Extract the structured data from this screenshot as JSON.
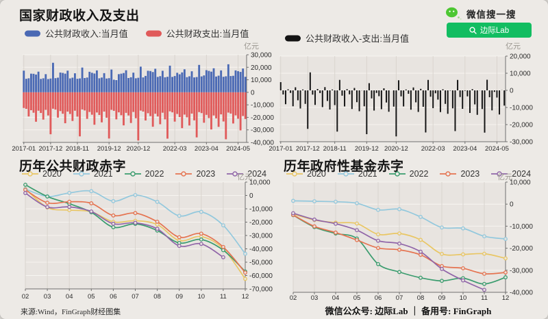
{
  "header": {
    "search_brand": "微信搜一搜",
    "search_button": "边际Lab",
    "brand_green": "#4dc732",
    "button_green": "#12bd61"
  },
  "footer": {
    "source": "来源:Wind，FinGraph财经图集",
    "accounts": "微信公众号: 边际Lab ｜ 备用号: FinGraph"
  },
  "colors": {
    "page_bg": "#edeae6",
    "plot_bg": "#e8e4e0",
    "grid_h": "#f7f5f1",
    "grid_v": "#d9d4ce",
    "axis": "#6f6f6f",
    "tick_text": "#2b2b2b",
    "revenue_blue": "#4a69b4",
    "expense_red": "#e05a5a",
    "net_black": "#141414"
  },
  "chart_data": [
    {
      "id": "rev-exp",
      "type": "bar",
      "title": "国家财政收入及支出",
      "unit": "亿元",
      "x_start": "2017-01",
      "x_end": "2024-08",
      "x_interval": "monthly",
      "x_tick_labels": [
        "2017-01",
        "2017-12",
        "2018-11",
        "2019-12",
        "2020-12",
        "2022-03",
        "2023-04",
        "2024-05"
      ],
      "x_tick_index": [
        0,
        11,
        22,
        35,
        47,
        62,
        75,
        88
      ],
      "ylim": [
        -40000,
        30000
      ],
      "y_step": 10000,
      "grid": true,
      "legend_position": "top",
      "series": [
        {
          "name": "公共财政收入:当月值",
          "color": "#4a69b4",
          "values": [
            17300,
            10800,
            11200,
            14900,
            14800,
            14200,
            16500,
            10700,
            11200,
            14500,
            10600,
            11000,
            23600,
            11300,
            11700,
            15800,
            15500,
            14900,
            17300,
            11100,
            11700,
            15200,
            10800,
            11100,
            19800,
            11400,
            11800,
            16400,
            15600,
            15000,
            17500,
            11200,
            11800,
            15300,
            11000,
            11300,
            18200,
            10100,
            9800,
            14500,
            14900,
            15400,
            17600,
            11400,
            12000,
            15700,
            11200,
            11600,
            20500,
            11900,
            13100,
            17200,
            17000,
            16200,
            18800,
            12300,
            12900,
            17200,
            12000,
            12400,
            21300,
            12300,
            13000,
            15600,
            14400,
            15900,
            18400,
            12100,
            12800,
            16800,
            11900,
            12200,
            21900,
            12700,
            13500,
            17700,
            17100,
            16500,
            19200,
            12600,
            13300,
            17500,
            12400,
            12800,
            22400,
            13000,
            13200,
            17500,
            16900,
            16300,
            19000,
            12400
          ]
        },
        {
          "name": "公共财政支出:当月值",
          "color": "#e05a5a",
          "values": [
            -12500,
            -13200,
            -19300,
            -14300,
            -16300,
            -23500,
            -14700,
            -16500,
            -21800,
            -14000,
            -18500,
            -33500,
            -13100,
            -13800,
            -20200,
            -15000,
            -17100,
            -24700,
            -15400,
            -17300,
            -22900,
            -14700,
            -19400,
            -35200,
            -13700,
            -14500,
            -21200,
            -15700,
            -17900,
            -25900,
            -16100,
            -18100,
            -24000,
            -15400,
            -20300,
            -36900,
            -14000,
            -14800,
            -21600,
            -16000,
            -18300,
            -26400,
            -16400,
            -18500,
            -24500,
            -15700,
            -20700,
            -38500,
            -14600,
            -15400,
            -22500,
            -16700,
            -19000,
            -27500,
            -17100,
            -19300,
            -25500,
            -16300,
            -21600,
            -37000,
            -15200,
            -16000,
            -23400,
            -17300,
            -19800,
            -28600,
            -17800,
            -20000,
            -26500,
            -17000,
            -22400,
            -36000,
            -15800,
            -16600,
            -24300,
            -18000,
            -20600,
            -29700,
            -18500,
            -20800,
            -27600,
            -17600,
            -23300,
            -37500,
            -16200,
            -17000,
            -24900,
            -18400,
            -21100,
            -30400,
            -18900,
            -21300
          ]
        }
      ]
    },
    {
      "id": "net",
      "type": "bar",
      "title": "",
      "unit": "亿元",
      "x_start": "2017-01",
      "x_end": "2024-08",
      "x_interval": "monthly",
      "x_tick_labels": [
        "2017-01",
        "2017-12",
        "2018-11",
        "2019-12",
        "2020-12",
        "2022-03",
        "2023-04",
        "2024-05"
      ],
      "x_tick_index": [
        0,
        11,
        22,
        35,
        47,
        62,
        75,
        88
      ],
      "ylim": [
        -30000,
        20000
      ],
      "y_step": 10000,
      "grid": true,
      "legend_position": "top",
      "series": [
        {
          "name": "公共财政收入-支出:当月值",
          "color": "#141414",
          "values": [
            4800,
            -2400,
            -8100,
            600,
            -1500,
            -9300,
            1800,
            -5800,
            -10600,
            500,
            -7900,
            -22500,
            10500,
            -2500,
            -8500,
            800,
            -1600,
            -9800,
            1900,
            -6200,
            -11200,
            500,
            -8600,
            -24100,
            6100,
            -3100,
            -9400,
            700,
            -2300,
            -10900,
            1400,
            -6900,
            -12200,
            -100,
            -9300,
            -25600,
            4200,
            -4700,
            -11800,
            -1500,
            -3400,
            -11000,
            1200,
            -7100,
            -12500,
            0,
            -9500,
            -26900,
            5900,
            -3500,
            -9400,
            500,
            -2000,
            -11300,
            1700,
            -7000,
            -12600,
            900,
            -9600,
            -24600,
            6100,
            -3700,
            -10400,
            -1700,
            -5400,
            -12700,
            600,
            -7900,
            -13700,
            -200,
            -10500,
            -23800,
            6100,
            -3900,
            -10800,
            -300,
            -3500,
            -13200,
            700,
            -8200,
            -14300,
            -100,
            -10900,
            -24700,
            6200,
            -4000,
            -11700,
            -900,
            -4200,
            -14100,
            100,
            -8900
          ]
        }
      ]
    },
    {
      "id": "public-deficit",
      "type": "line",
      "title": "历年公共财政赤字",
      "unit": "亿元",
      "x_categories": [
        "02",
        "03",
        "04",
        "05",
        "06",
        "07",
        "08",
        "09",
        "10",
        "11",
        "12"
      ],
      "ylim": [
        -70000,
        10000
      ],
      "y_step": 10000,
      "grid": true,
      "legend_position": "top",
      "series": [
        {
          "name": "2020",
          "color": "#e9c663",
          "values": [
            5000,
            -9000,
            -11000,
            -12200,
            -19800,
            -19000,
            -21800,
            -33800,
            -30800,
            -40000,
            -62500
          ]
        },
        {
          "name": "2021",
          "color": "#92c8dd",
          "values": [
            4800,
            -700,
            1900,
            3200,
            -4300,
            300,
            -4800,
            -15300,
            -12300,
            -22400,
            -43700
          ]
        },
        {
          "name": "2022",
          "color": "#3a9c6e",
          "values": [
            8000,
            -800,
            -6200,
            -12600,
            -23800,
            -21300,
            -26300,
            -35600,
            -33000,
            -41000,
            -57000
          ]
        },
        {
          "name": "2023",
          "color": "#e57350",
          "values": [
            4200,
            -5500,
            -4700,
            -5900,
            -15000,
            -13200,
            -19700,
            -31300,
            -28600,
            -38600,
            -57800
          ]
        },
        {
          "name": "2024",
          "color": "#9065a8",
          "values": [
            1800,
            -8700,
            -8600,
            -12000,
            -21200,
            -20500,
            -25000,
            -37800,
            -36300,
            -46300,
            null
          ]
        }
      ]
    },
    {
      "id": "fund-deficit",
      "type": "line",
      "title": "历年政府性基金赤字",
      "unit": "亿元",
      "x_categories": [
        "02",
        "03",
        "04",
        "05",
        "06",
        "07",
        "08",
        "09",
        "10",
        "11",
        "12"
      ],
      "ylim": [
        -40000,
        10000
      ],
      "y_step": 10000,
      "grid": true,
      "legend_position": "top",
      "series": [
        {
          "name": "2020",
          "color": "#e9c663",
          "values": [
            -4500,
            -7200,
            -8400,
            -8800,
            -13700,
            -13300,
            -16200,
            -22600,
            -22800,
            -22500,
            -24600
          ]
        },
        {
          "name": "2021",
          "color": "#92c8dd",
          "values": [
            1500,
            1300,
            1100,
            400,
            -2600,
            -2300,
            -5800,
            -10600,
            -11000,
            -14600,
            -15800
          ]
        },
        {
          "name": "2022",
          "color": "#3a9c6e",
          "values": [
            -5000,
            -10400,
            -13300,
            -15600,
            -27200,
            -30800,
            -33400,
            -34800,
            -33600,
            -36200,
            -33200
          ]
        },
        {
          "name": "2023",
          "color": "#e57350",
          "values": [
            -4900,
            -10100,
            -12900,
            -16300,
            -19900,
            -20700,
            -23000,
            -28100,
            -29100,
            -31600,
            -31000
          ]
        },
        {
          "name": "2024",
          "color": "#9065a8",
          "values": [
            -4100,
            -7000,
            -8900,
            -11800,
            -16600,
            -17900,
            -21600,
            -29400,
            -34600,
            -38900,
            null
          ]
        }
      ]
    }
  ]
}
